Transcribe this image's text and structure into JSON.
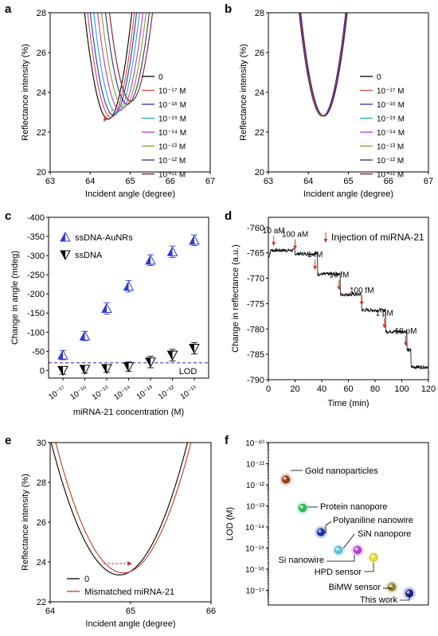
{
  "figure": {
    "width": 550,
    "height": 799
  },
  "chart_data": [
    {
      "panel": "a",
      "type": "line",
      "xlabel": "Incident angle (degree)",
      "ylabel": "Reflectance intensity (%)",
      "xlim": [
        63,
        67
      ],
      "ylim": [
        20,
        28
      ],
      "xticks": [
        "63",
        "64",
        "65",
        "66",
        "67"
      ],
      "yticks": [
        "20",
        "22",
        "24",
        "26",
        "28"
      ],
      "legend_position": "right",
      "legend": [
        "0",
        "10⁻¹⁷ M",
        "10⁻¹⁶ M",
        "10⁻¹⁵ M",
        "10⁻¹⁴ M",
        "10⁻¹³ M",
        "10⁻¹² M",
        "10⁻¹¹ M"
      ],
      "series": [
        {
          "name": "0",
          "color": "#000000",
          "center": 64.45,
          "min": 22.65
        },
        {
          "name": "10⁻¹⁷ M",
          "color": "#e0493a",
          "center": 64.52,
          "min": 22.75
        },
        {
          "name": "10⁻¹⁶ M",
          "color": "#2c30c8",
          "center": 64.58,
          "min": 22.85
        },
        {
          "name": "10⁻¹⁵ M",
          "color": "#22a8c8",
          "center": 64.66,
          "min": 22.98
        },
        {
          "name": "10⁻¹⁴ M",
          "color": "#cc33cc",
          "center": 64.75,
          "min": 23.1
        },
        {
          "name": "10⁻¹³ M",
          "color": "#8a9a2a",
          "center": 64.84,
          "min": 23.25
        },
        {
          "name": "10⁻¹² M",
          "color": "#30307a",
          "center": 64.93,
          "min": 23.4
        },
        {
          "name": "10⁻¹¹ M",
          "color": "#7a1e1e",
          "center": 65.02,
          "min": 23.55
        }
      ]
    },
    {
      "panel": "b",
      "type": "line",
      "xlabel": "Incident angle (degree)",
      "ylabel": "Reflectance intensity (%)",
      "xlim": [
        63,
        67
      ],
      "ylim": [
        20,
        28
      ],
      "xticks": [
        "63",
        "64",
        "65",
        "66",
        "67"
      ],
      "yticks": [
        "20",
        "22",
        "24",
        "26",
        "28"
      ],
      "legend_position": "right",
      "legend": [
        "0",
        "10⁻¹⁷ M",
        "10⁻¹⁶ M",
        "10⁻¹⁵ M",
        "10⁻¹⁴ M",
        "10⁻¹³ M",
        "10⁻¹² M",
        "10⁻¹¹ M"
      ],
      "series": [
        {
          "name": "0",
          "color": "#000000",
          "center": 64.35,
          "min": 22.8
        },
        {
          "name": "10⁻¹⁷ M",
          "color": "#e0493a",
          "center": 64.36,
          "min": 22.8
        },
        {
          "name": "10⁻¹⁶ M",
          "color": "#2c30c8",
          "center": 64.36,
          "min": 22.82
        },
        {
          "name": "10⁻¹⁵ M",
          "color": "#22a8c8",
          "center": 64.37,
          "min": 22.8
        },
        {
          "name": "10⁻¹⁴ M",
          "color": "#cc33cc",
          "center": 64.37,
          "min": 22.81
        },
        {
          "name": "10⁻¹³ M",
          "color": "#8a9a2a",
          "center": 64.38,
          "min": 22.8
        },
        {
          "name": "10⁻¹² M",
          "color": "#30307a",
          "center": 64.38,
          "min": 22.82
        },
        {
          "name": "10⁻¹¹ M",
          "color": "#7a1e1e",
          "center": 64.39,
          "min": 22.81
        }
      ]
    },
    {
      "panel": "c",
      "type": "scatter",
      "xlabel": "miRNA-21 concentration (M)",
      "ylabel": "Change in angle (mdeg)",
      "ylim": [
        20,
        -400
      ],
      "categories": [
        "10⁻¹⁷",
        "10⁻¹⁶",
        "10⁻¹⁵",
        "10⁻¹⁴",
        "10⁻¹³",
        "10⁻¹²",
        "10⁻¹¹"
      ],
      "yticks": [
        "-400",
        "-350",
        "-300",
        "-250",
        "-200",
        "-150",
        "-100",
        "-50",
        "0"
      ],
      "series": [
        {
          "name": "ssDNA-AuNRs",
          "color": "#2f3bd0",
          "marker": "half-triangle-up",
          "values": [
            -40,
            -90,
            -162,
            -220,
            -288,
            -310,
            -340
          ],
          "errors": [
            12,
            12,
            15,
            15,
            14,
            15,
            14
          ]
        },
        {
          "name": "ssDNA",
          "color": "#000000",
          "marker": "half-triangle-down",
          "values": [
            0,
            -3,
            -5,
            -10,
            -22,
            -40,
            -58
          ],
          "errors": [
            10,
            10,
            10,
            12,
            15,
            15,
            15
          ]
        }
      ],
      "lod": {
        "value": -20,
        "label": "LOD",
        "color": "#6b40c0"
      },
      "legend": [
        "ssDNA-AuNRs",
        "ssDNA"
      ],
      "legend_position": "top-left"
    },
    {
      "panel": "d",
      "type": "line",
      "xlabel": "Time (min)",
      "ylabel": "Change in reflectance (a.u.)",
      "xlim": [
        0,
        120
      ],
      "ylim": [
        -790,
        -758
      ],
      "xticks": [
        "0",
        "20",
        "40",
        "60",
        "80",
        "100",
        "120"
      ],
      "yticks": [
        "-760",
        "-765",
        "-770",
        "-775",
        "-780",
        "-785",
        "-790"
      ],
      "legend": "Injection of miRNA-21",
      "legend_position": "top-right",
      "steps": [
        {
          "t": 0,
          "level": -764.5
        },
        {
          "t": 20,
          "level": -765.2
        },
        {
          "t": 37,
          "level": -769.2
        },
        {
          "t": 54,
          "level": -773.2
        },
        {
          "t": 70,
          "level": -776.3
        },
        {
          "t": 88,
          "level": -780.5
        },
        {
          "t": 104,
          "level": -784.2
        },
        {
          "t": 107,
          "level": -787.5
        }
      ],
      "injections": [
        {
          "label": "10 aM",
          "t": 4,
          "level": -764.3
        },
        {
          "label": "100 aM",
          "t": 20,
          "level": -765
        },
        {
          "label": "1 fM",
          "t": 35,
          "level": -769
        },
        {
          "label": "10 fM",
          "t": 53,
          "level": -773
        },
        {
          "label": "100 fM",
          "t": 70,
          "level": -776
        },
        {
          "label": "1 pM",
          "t": 87,
          "level": -780.5
        },
        {
          "label": "10 pM",
          "t": 103,
          "level": -784
        }
      ],
      "arrow_color": "#c0392b"
    },
    {
      "panel": "e",
      "type": "line",
      "xlabel": "Incident angle (degree)",
      "ylabel": "Reflectance intensity (%)",
      "xlim": [
        64,
        66
      ],
      "ylim": [
        22,
        30
      ],
      "xticks": [
        "64",
        "65",
        "66"
      ],
      "yticks": [
        "22",
        "24",
        "26",
        "28",
        "30"
      ],
      "legend": [
        "0",
        "Mismatched miRNA-21"
      ],
      "legend_position": "bottom",
      "series": [
        {
          "name": "0",
          "color": "#000000",
          "center": 64.86,
          "min": 23.35
        },
        {
          "name": "Mismatched miRNA-21",
          "color": "#c0392b",
          "center": 64.91,
          "min": 23.45
        }
      ]
    },
    {
      "panel": "f",
      "type": "scatter",
      "ylabel": "LOD (M)",
      "ylim": [
        -17.7,
        -10
      ],
      "yticks": [
        "10⁻¹⁰",
        "10⁻¹¹",
        "10⁻¹²",
        "10⁻¹³",
        "10⁻¹⁴",
        "10⁻¹⁵",
        "10⁻¹⁶",
        "10⁻¹⁷"
      ],
      "points": [
        {
          "label": "Gold nanoparticles",
          "log_lod": -11.75,
          "color": "#9a3b12"
        },
        {
          "label": "Protein nanopore",
          "log_lod": -13.1,
          "color": "#22c455"
        },
        {
          "label": "Polyaniline nanowire",
          "log_lod": -14.25,
          "color": "#1c2fb0"
        },
        {
          "label": "SiN nanopore",
          "log_lod": -15.1,
          "color": "#55c8ee"
        },
        {
          "label": "Si nanowire",
          "log_lod": -15.1,
          "color": "#b040e0"
        },
        {
          "label": "HPD sensor",
          "log_lod": -15.45,
          "color": "#e8e033"
        },
        {
          "label": "BiMW sensor",
          "log_lod": -16.85,
          "color": "#8a8a22"
        },
        {
          "label": "This work",
          "log_lod": -17.15,
          "color": "#1a1e8a"
        }
      ]
    }
  ]
}
